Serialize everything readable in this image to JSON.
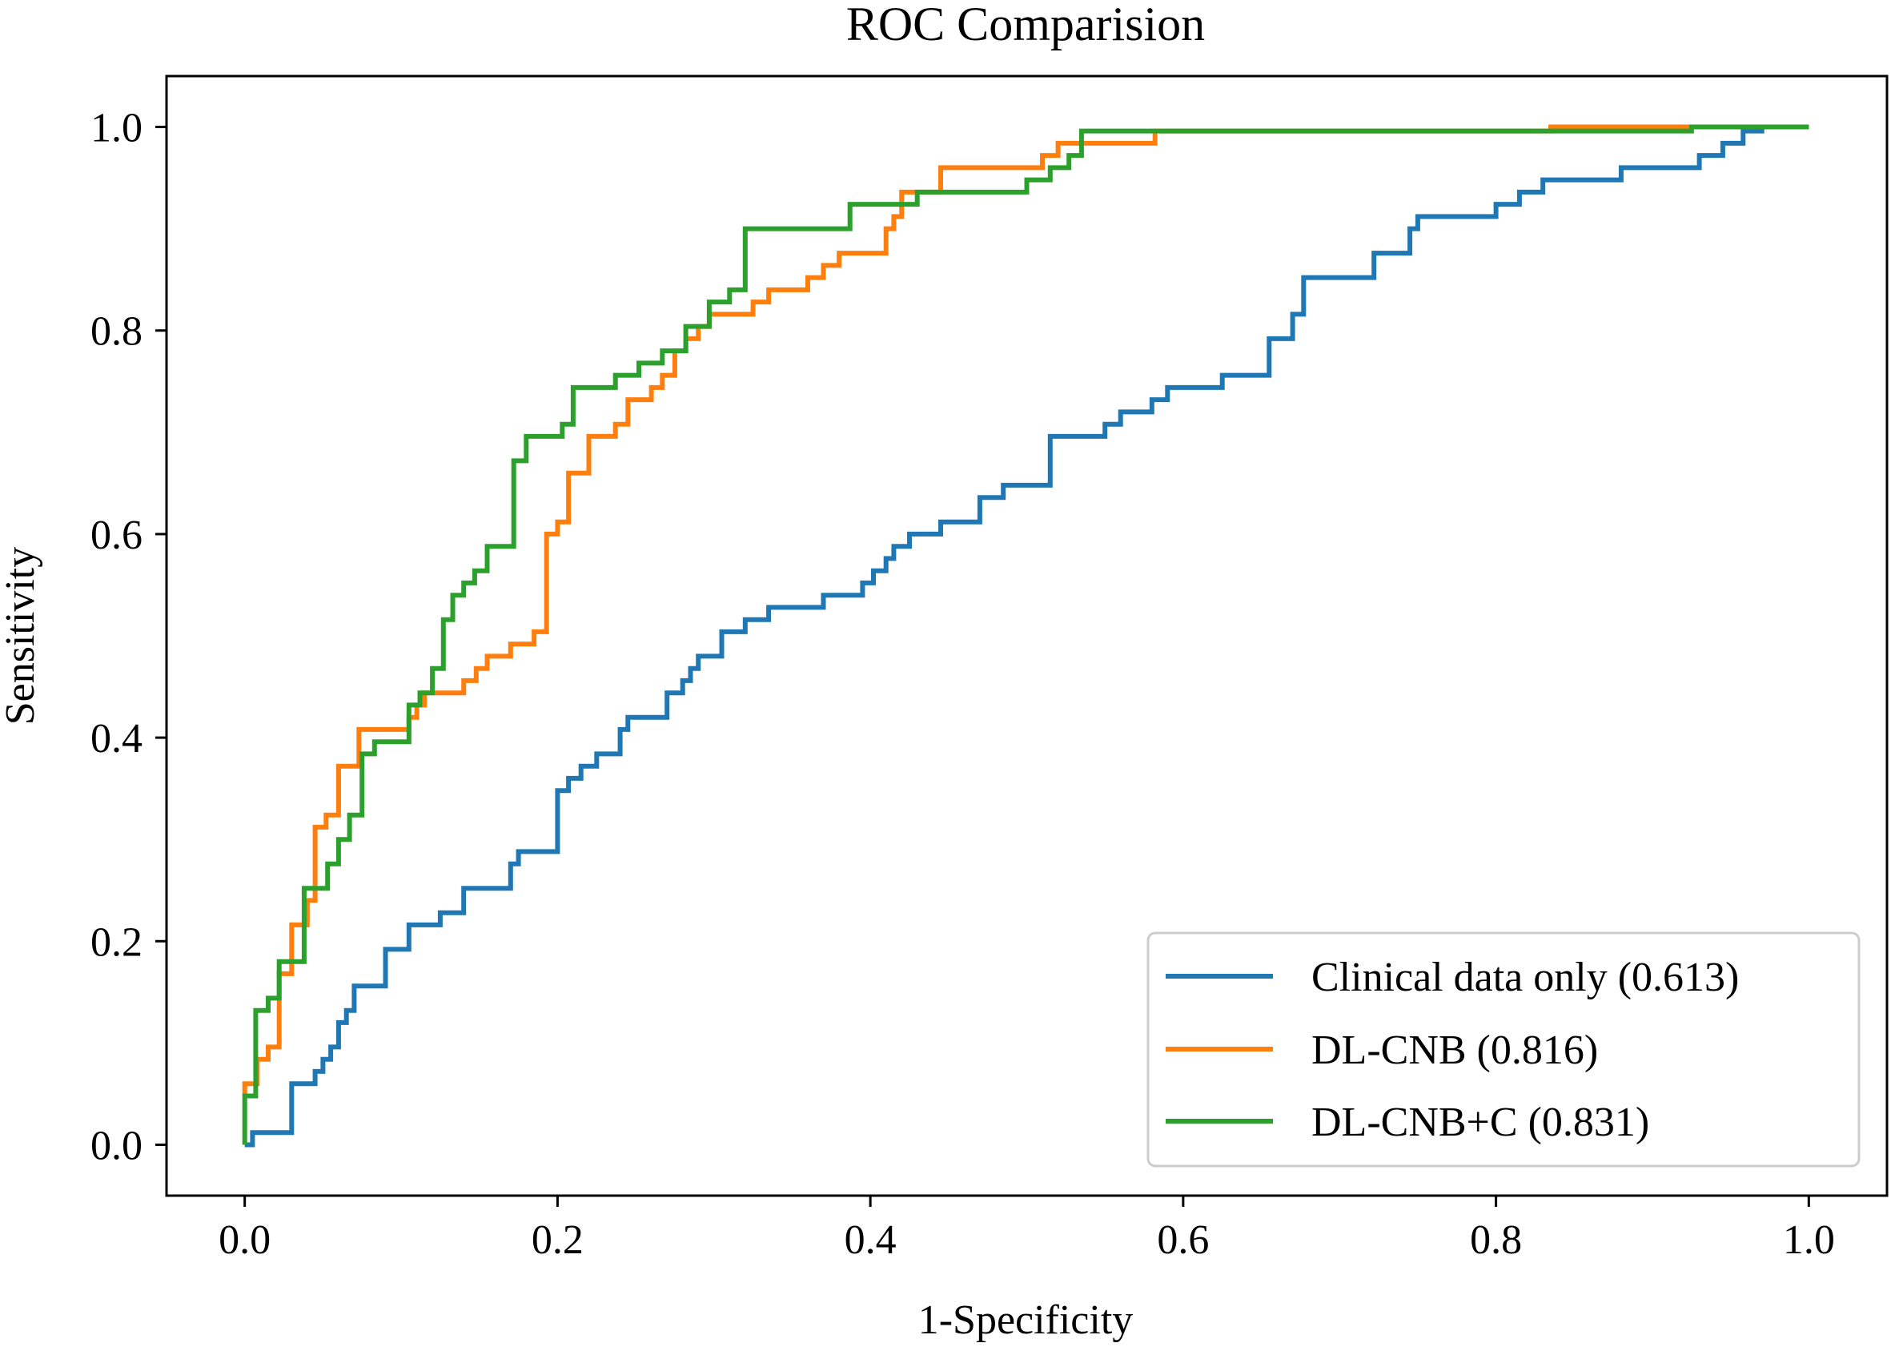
{
  "chart_data": {
    "type": "line",
    "title": "ROC Comparision",
    "xlabel": "1-Specificity",
    "ylabel": "Sensitivity",
    "xlim": [
      -0.05,
      1.05
    ],
    "ylim": [
      -0.05,
      1.05
    ],
    "x_ticks": [
      {
        "value": 0.0,
        "label": "0.0"
      },
      {
        "value": 0.2,
        "label": "0.2"
      },
      {
        "value": 0.4,
        "label": "0.4"
      },
      {
        "value": 0.6,
        "label": "0.6"
      },
      {
        "value": 0.8,
        "label": "0.8"
      },
      {
        "value": 1.0,
        "label": "1.0"
      }
    ],
    "y_ticks": [
      {
        "value": 0.0,
        "label": "0.0"
      },
      {
        "value": 0.2,
        "label": "0.2"
      },
      {
        "value": 0.4,
        "label": "0.4"
      },
      {
        "value": 0.6,
        "label": "0.6"
      },
      {
        "value": 0.8,
        "label": "0.8"
      },
      {
        "value": 1.0,
        "label": "1.0"
      }
    ],
    "grid": false,
    "legend_position": "bottom-right",
    "series": [
      {
        "name": "Clinical data only (0.613)",
        "color": "#1f77b4",
        "points": [
          [
            0,
            0
          ],
          [
            0.005,
            0
          ],
          [
            0.005,
            0.012
          ],
          [
            0.03,
            0.012
          ],
          [
            0.03,
            0.06
          ],
          [
            0.045,
            0.06
          ],
          [
            0.045,
            0.072
          ],
          [
            0.05,
            0.072
          ],
          [
            0.05,
            0.084
          ],
          [
            0.055,
            0.084
          ],
          [
            0.055,
            0.096
          ],
          [
            0.06,
            0.096
          ],
          [
            0.06,
            0.12
          ],
          [
            0.065,
            0.12
          ],
          [
            0.065,
            0.132
          ],
          [
            0.07,
            0.132
          ],
          [
            0.07,
            0.156
          ],
          [
            0.09,
            0.156
          ],
          [
            0.09,
            0.192
          ],
          [
            0.105,
            0.192
          ],
          [
            0.105,
            0.216
          ],
          [
            0.125,
            0.216
          ],
          [
            0.125,
            0.228
          ],
          [
            0.14,
            0.228
          ],
          [
            0.14,
            0.252
          ],
          [
            0.17,
            0.252
          ],
          [
            0.17,
            0.276
          ],
          [
            0.175,
            0.276
          ],
          [
            0.175,
            0.288
          ],
          [
            0.2,
            0.288
          ],
          [
            0.2,
            0.348
          ],
          [
            0.207,
            0.348
          ],
          [
            0.207,
            0.36
          ],
          [
            0.215,
            0.36
          ],
          [
            0.215,
            0.372
          ],
          [
            0.225,
            0.372
          ],
          [
            0.225,
            0.384
          ],
          [
            0.24,
            0.384
          ],
          [
            0.24,
            0.408
          ],
          [
            0.245,
            0.408
          ],
          [
            0.245,
            0.42
          ],
          [
            0.27,
            0.42
          ],
          [
            0.27,
            0.444
          ],
          [
            0.28,
            0.444
          ],
          [
            0.28,
            0.456
          ],
          [
            0.285,
            0.456
          ],
          [
            0.285,
            0.468
          ],
          [
            0.29,
            0.468
          ],
          [
            0.29,
            0.48
          ],
          [
            0.305,
            0.48
          ],
          [
            0.305,
            0.504
          ],
          [
            0.32,
            0.504
          ],
          [
            0.32,
            0.516
          ],
          [
            0.335,
            0.516
          ],
          [
            0.335,
            0.528
          ],
          [
            0.37,
            0.528
          ],
          [
            0.37,
            0.54
          ],
          [
            0.395,
            0.54
          ],
          [
            0.395,
            0.552
          ],
          [
            0.402,
            0.552
          ],
          [
            0.402,
            0.564
          ],
          [
            0.41,
            0.564
          ],
          [
            0.41,
            0.576
          ],
          [
            0.415,
            0.576
          ],
          [
            0.415,
            0.588
          ],
          [
            0.425,
            0.588
          ],
          [
            0.425,
            0.6
          ],
          [
            0.445,
            0.6
          ],
          [
            0.445,
            0.612
          ],
          [
            0.47,
            0.612
          ],
          [
            0.47,
            0.636
          ],
          [
            0.485,
            0.636
          ],
          [
            0.485,
            0.648
          ],
          [
            0.515,
            0.648
          ],
          [
            0.515,
            0.696
          ],
          [
            0.55,
            0.696
          ],
          [
            0.55,
            0.708
          ],
          [
            0.56,
            0.708
          ],
          [
            0.56,
            0.72
          ],
          [
            0.58,
            0.72
          ],
          [
            0.58,
            0.732
          ],
          [
            0.59,
            0.732
          ],
          [
            0.59,
            0.744
          ],
          [
            0.625,
            0.744
          ],
          [
            0.625,
            0.756
          ],
          [
            0.655,
            0.756
          ],
          [
            0.655,
            0.792
          ],
          [
            0.67,
            0.792
          ],
          [
            0.67,
            0.816
          ],
          [
            0.677,
            0.816
          ],
          [
            0.677,
            0.852
          ],
          [
            0.722,
            0.852
          ],
          [
            0.722,
            0.876
          ],
          [
            0.745,
            0.876
          ],
          [
            0.745,
            0.9
          ],
          [
            0.75,
            0.9
          ],
          [
            0.75,
            0.912
          ],
          [
            0.8,
            0.912
          ],
          [
            0.8,
            0.924
          ],
          [
            0.815,
            0.924
          ],
          [
            0.815,
            0.936
          ],
          [
            0.83,
            0.936
          ],
          [
            0.83,
            0.948
          ],
          [
            0.88,
            0.948
          ],
          [
            0.88,
            0.96
          ],
          [
            0.93,
            0.96
          ],
          [
            0.93,
            0.972
          ],
          [
            0.945,
            0.972
          ],
          [
            0.945,
            0.984
          ],
          [
            0.958,
            0.984
          ],
          [
            0.958,
            0.996
          ],
          [
            0.97,
            0.996
          ],
          [
            0.97,
            1.0
          ],
          [
            1.0,
            1.0
          ]
        ]
      },
      {
        "name": "DL-CNB (0.816)",
        "color": "#ff7f0e",
        "points": [
          [
            0,
            0.048
          ],
          [
            0,
            0.06
          ],
          [
            0.008,
            0.06
          ],
          [
            0.008,
            0.084
          ],
          [
            0.015,
            0.084
          ],
          [
            0.015,
            0.096
          ],
          [
            0.022,
            0.096
          ],
          [
            0.022,
            0.168
          ],
          [
            0.03,
            0.168
          ],
          [
            0.03,
            0.216
          ],
          [
            0.04,
            0.216
          ],
          [
            0.04,
            0.24
          ],
          [
            0.045,
            0.24
          ],
          [
            0.045,
            0.312
          ],
          [
            0.052,
            0.312
          ],
          [
            0.052,
            0.324
          ],
          [
            0.06,
            0.324
          ],
          [
            0.06,
            0.372
          ],
          [
            0.073,
            0.372
          ],
          [
            0.073,
            0.408
          ],
          [
            0.105,
            0.408
          ],
          [
            0.105,
            0.42
          ],
          [
            0.11,
            0.42
          ],
          [
            0.11,
            0.432
          ],
          [
            0.115,
            0.432
          ],
          [
            0.115,
            0.444
          ],
          [
            0.14,
            0.444
          ],
          [
            0.14,
            0.456
          ],
          [
            0.148,
            0.456
          ],
          [
            0.148,
            0.468
          ],
          [
            0.155,
            0.468
          ],
          [
            0.155,
            0.48
          ],
          [
            0.17,
            0.48
          ],
          [
            0.17,
            0.492
          ],
          [
            0.185,
            0.492
          ],
          [
            0.185,
            0.504
          ],
          [
            0.193,
            0.504
          ],
          [
            0.193,
            0.6
          ],
          [
            0.2,
            0.6
          ],
          [
            0.2,
            0.612
          ],
          [
            0.207,
            0.612
          ],
          [
            0.207,
            0.66
          ],
          [
            0.22,
            0.66
          ],
          [
            0.22,
            0.696
          ],
          [
            0.237,
            0.696
          ],
          [
            0.237,
            0.708
          ],
          [
            0.245,
            0.708
          ],
          [
            0.245,
            0.732
          ],
          [
            0.26,
            0.732
          ],
          [
            0.26,
            0.744
          ],
          [
            0.267,
            0.744
          ],
          [
            0.267,
            0.756
          ],
          [
            0.275,
            0.756
          ],
          [
            0.275,
            0.78
          ],
          [
            0.282,
            0.78
          ],
          [
            0.282,
            0.792
          ],
          [
            0.29,
            0.792
          ],
          [
            0.29,
            0.804
          ],
          [
            0.297,
            0.804
          ],
          [
            0.297,
            0.816
          ],
          [
            0.325,
            0.816
          ],
          [
            0.325,
            0.828
          ],
          [
            0.335,
            0.828
          ],
          [
            0.335,
            0.84
          ],
          [
            0.36,
            0.84
          ],
          [
            0.36,
            0.852
          ],
          [
            0.37,
            0.852
          ],
          [
            0.37,
            0.864
          ],
          [
            0.38,
            0.864
          ],
          [
            0.38,
            0.876
          ],
          [
            0.41,
            0.876
          ],
          [
            0.41,
            0.9
          ],
          [
            0.415,
            0.9
          ],
          [
            0.415,
            0.912
          ],
          [
            0.42,
            0.912
          ],
          [
            0.42,
            0.936
          ],
          [
            0.445,
            0.936
          ],
          [
            0.445,
            0.96
          ],
          [
            0.51,
            0.96
          ],
          [
            0.51,
            0.972
          ],
          [
            0.52,
            0.972
          ],
          [
            0.52,
            0.984
          ],
          [
            0.582,
            0.984
          ],
          [
            0.582,
            0.996
          ],
          [
            0.835,
            0.996
          ],
          [
            0.835,
            1.0
          ],
          [
            1.0,
            1.0
          ]
        ]
      },
      {
        "name": "DL-CNB+C (0.831)",
        "color": "#2ca02c",
        "points": [
          [
            0,
            0
          ],
          [
            0,
            0.048
          ],
          [
            0.007,
            0.048
          ],
          [
            0.007,
            0.132
          ],
          [
            0.015,
            0.132
          ],
          [
            0.015,
            0.144
          ],
          [
            0.022,
            0.144
          ],
          [
            0.022,
            0.18
          ],
          [
            0.038,
            0.18
          ],
          [
            0.038,
            0.252
          ],
          [
            0.053,
            0.252
          ],
          [
            0.053,
            0.276
          ],
          [
            0.06,
            0.276
          ],
          [
            0.06,
            0.3
          ],
          [
            0.067,
            0.3
          ],
          [
            0.067,
            0.324
          ],
          [
            0.075,
            0.324
          ],
          [
            0.075,
            0.384
          ],
          [
            0.083,
            0.384
          ],
          [
            0.083,
            0.396
          ],
          [
            0.105,
            0.396
          ],
          [
            0.105,
            0.432
          ],
          [
            0.112,
            0.432
          ],
          [
            0.112,
            0.444
          ],
          [
            0.12,
            0.444
          ],
          [
            0.12,
            0.468
          ],
          [
            0.127,
            0.468
          ],
          [
            0.127,
            0.516
          ],
          [
            0.133,
            0.516
          ],
          [
            0.133,
            0.54
          ],
          [
            0.14,
            0.54
          ],
          [
            0.14,
            0.552
          ],
          [
            0.147,
            0.552
          ],
          [
            0.147,
            0.564
          ],
          [
            0.155,
            0.564
          ],
          [
            0.155,
            0.588
          ],
          [
            0.172,
            0.588
          ],
          [
            0.172,
            0.672
          ],
          [
            0.18,
            0.672
          ],
          [
            0.18,
            0.696
          ],
          [
            0.203,
            0.696
          ],
          [
            0.203,
            0.708
          ],
          [
            0.21,
            0.708
          ],
          [
            0.21,
            0.744
          ],
          [
            0.237,
            0.744
          ],
          [
            0.237,
            0.756
          ],
          [
            0.252,
            0.756
          ],
          [
            0.252,
            0.768
          ],
          [
            0.267,
            0.768
          ],
          [
            0.267,
            0.78
          ],
          [
            0.282,
            0.78
          ],
          [
            0.282,
            0.804
          ],
          [
            0.297,
            0.804
          ],
          [
            0.297,
            0.828
          ],
          [
            0.31,
            0.828
          ],
          [
            0.31,
            0.84
          ],
          [
            0.32,
            0.84
          ],
          [
            0.32,
            0.9
          ],
          [
            0.387,
            0.9
          ],
          [
            0.387,
            0.924
          ],
          [
            0.43,
            0.924
          ],
          [
            0.43,
            0.936
          ],
          [
            0.5,
            0.936
          ],
          [
            0.5,
            0.948
          ],
          [
            0.515,
            0.948
          ],
          [
            0.515,
            0.96
          ],
          [
            0.527,
            0.96
          ],
          [
            0.527,
            0.972
          ],
          [
            0.535,
            0.972
          ],
          [
            0.535,
            0.996
          ],
          [
            0.925,
            0.996
          ],
          [
            0.925,
            1.0
          ],
          [
            1.0,
            1.0
          ]
        ]
      }
    ]
  }
}
